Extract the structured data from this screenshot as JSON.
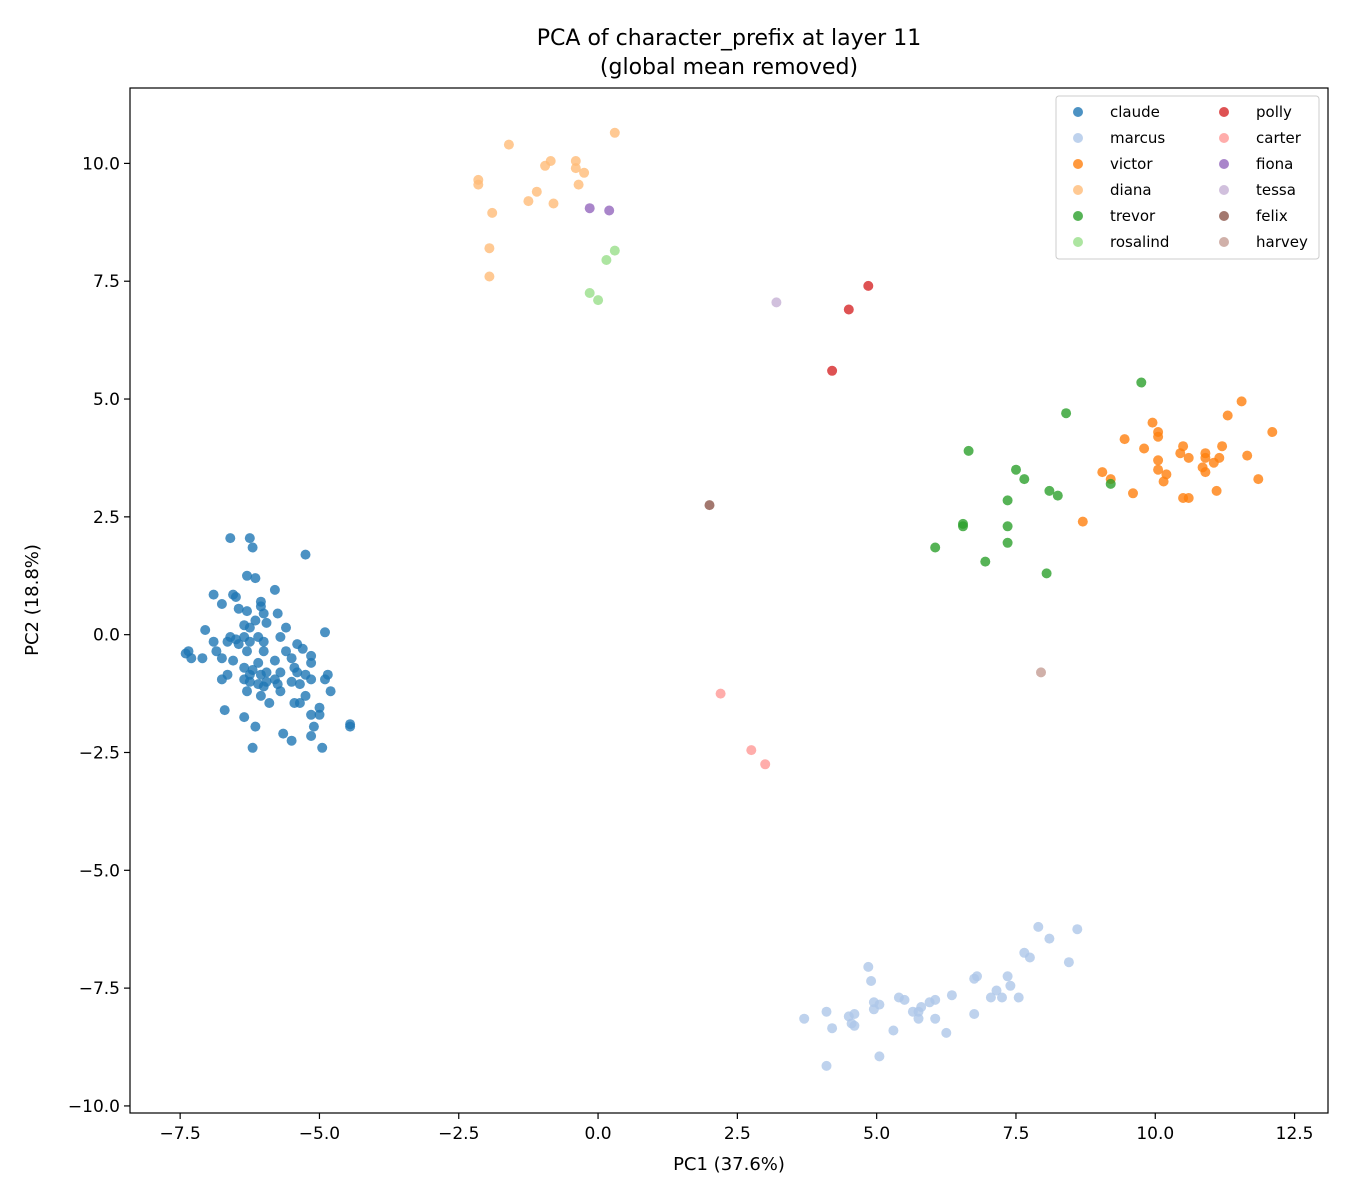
{
  "chart_data": {
    "type": "scatter",
    "title": "PCA of character_prefix at layer 11",
    "subtitle": "(global mean removed)",
    "xlabel": "PC1 (37.6%)",
    "ylabel": "PC2 (18.8%)",
    "xlim": [
      -8.4,
      13.1
    ],
    "ylim": [
      -10.15,
      11.6
    ],
    "xticks": [
      -7.5,
      -5.0,
      -2.5,
      0.0,
      2.5,
      5.0,
      7.5,
      10.0,
      12.5
    ],
    "xtick_labels": [
      "−7.5",
      "−5.0",
      "−2.5",
      "0.0",
      "2.5",
      "5.0",
      "7.5",
      "10.0",
      "12.5"
    ],
    "yticks": [
      -10.0,
      -7.5,
      -5.0,
      -2.5,
      0.0,
      2.5,
      5.0,
      7.5,
      10.0
    ],
    "ytick_labels": [
      "−10.0",
      "−7.5",
      "−5.0",
      "−2.5",
      "0.0",
      "2.5",
      "5.0",
      "7.5",
      "10.0"
    ],
    "grid": false,
    "legend_position": "top-right",
    "legend_columns": 2,
    "series": [
      {
        "name": "claude",
        "color": "#1f77b4",
        "points": [
          [
            -6.6,
            2.05
          ],
          [
            -6.25,
            2.05
          ],
          [
            -6.2,
            1.85
          ],
          [
            -5.25,
            1.7
          ],
          [
            -6.3,
            1.25
          ],
          [
            -6.15,
            1.2
          ],
          [
            -5.8,
            0.95
          ],
          [
            -6.9,
            0.85
          ],
          [
            -6.55,
            0.85
          ],
          [
            -6.5,
            0.8
          ],
          [
            -6.75,
            0.65
          ],
          [
            -6.05,
            0.7
          ],
          [
            -6.05,
            0.6
          ],
          [
            -6.45,
            0.55
          ],
          [
            -6.3,
            0.5
          ],
          [
            -5.75,
            0.45
          ],
          [
            -6.0,
            0.45
          ],
          [
            -6.15,
            0.3
          ],
          [
            -5.95,
            0.25
          ],
          [
            -7.05,
            0.1
          ],
          [
            -6.35,
            0.2
          ],
          [
            -6.25,
            0.15
          ],
          [
            -5.6,
            0.15
          ],
          [
            -5.7,
            -0.05
          ],
          [
            -4.9,
            0.05
          ],
          [
            -6.6,
            -0.05
          ],
          [
            -6.1,
            -0.05
          ],
          [
            -6.5,
            -0.1
          ],
          [
            -6.35,
            -0.05
          ],
          [
            -6.65,
            -0.15
          ],
          [
            -6.45,
            -0.2
          ],
          [
            -6.9,
            -0.15
          ],
          [
            -6.25,
            -0.15
          ],
          [
            -6.0,
            -0.15
          ],
          [
            -6.3,
            -0.35
          ],
          [
            -6.0,
            -0.35
          ],
          [
            -5.4,
            -0.2
          ],
          [
            -5.3,
            -0.3
          ],
          [
            -7.4,
            -0.4
          ],
          [
            -7.35,
            -0.35
          ],
          [
            -7.3,
            -0.5
          ],
          [
            -7.1,
            -0.5
          ],
          [
            -6.85,
            -0.35
          ],
          [
            -6.75,
            -0.5
          ],
          [
            -6.55,
            -0.55
          ],
          [
            -6.35,
            -0.7
          ],
          [
            -6.1,
            -0.6
          ],
          [
            -5.8,
            -0.55
          ],
          [
            -5.6,
            -0.35
          ],
          [
            -5.5,
            -0.5
          ],
          [
            -5.15,
            -0.45
          ],
          [
            -5.15,
            -0.6
          ],
          [
            -6.2,
            -0.75
          ],
          [
            -6.25,
            -0.85
          ],
          [
            -6.05,
            -0.85
          ],
          [
            -5.95,
            -0.8
          ],
          [
            -5.7,
            -0.8
          ],
          [
            -5.45,
            -0.7
          ],
          [
            -5.4,
            -0.8
          ],
          [
            -5.25,
            -0.85
          ],
          [
            -5.15,
            -0.95
          ],
          [
            -4.85,
            -0.85
          ],
          [
            -4.9,
            -0.95
          ],
          [
            -6.65,
            -0.85
          ],
          [
            -6.75,
            -0.95
          ],
          [
            -6.35,
            -0.95
          ],
          [
            -6.25,
            -1.0
          ],
          [
            -6.1,
            -1.05
          ],
          [
            -5.95,
            -1.0
          ],
          [
            -5.8,
            -0.95
          ],
          [
            -5.75,
            -1.05
          ],
          [
            -5.5,
            -1.0
          ],
          [
            -5.35,
            -1.05
          ],
          [
            -6.3,
            -1.2
          ],
          [
            -6.0,
            -1.1
          ],
          [
            -5.7,
            -1.2
          ],
          [
            -4.8,
            -1.2
          ],
          [
            -5.25,
            -1.3
          ],
          [
            -6.05,
            -1.3
          ],
          [
            -5.9,
            -1.45
          ],
          [
            -5.45,
            -1.45
          ],
          [
            -5.35,
            -1.45
          ],
          [
            -5.0,
            -1.55
          ],
          [
            -6.7,
            -1.6
          ],
          [
            -5.15,
            -1.7
          ],
          [
            -5.0,
            -1.7
          ],
          [
            -6.35,
            -1.75
          ],
          [
            -6.15,
            -1.95
          ],
          [
            -5.1,
            -1.95
          ],
          [
            -4.45,
            -1.9
          ],
          [
            -4.45,
            -1.95
          ],
          [
            -5.65,
            -2.1
          ],
          [
            -5.5,
            -2.25
          ],
          [
            -5.15,
            -2.15
          ],
          [
            -6.2,
            -2.4
          ],
          [
            -4.95,
            -2.4
          ]
        ]
      },
      {
        "name": "marcus",
        "color": "#aec7e8",
        "points": [
          [
            7.9,
            -6.2
          ],
          [
            8.6,
            -6.25
          ],
          [
            8.1,
            -6.45
          ],
          [
            7.65,
            -6.75
          ],
          [
            7.75,
            -6.85
          ],
          [
            8.45,
            -6.95
          ],
          [
            4.85,
            -7.05
          ],
          [
            6.8,
            -7.25
          ],
          [
            6.75,
            -7.3
          ],
          [
            7.35,
            -7.25
          ],
          [
            4.9,
            -7.35
          ],
          [
            7.4,
            -7.45
          ],
          [
            7.15,
            -7.55
          ],
          [
            6.35,
            -7.65
          ],
          [
            7.05,
            -7.7
          ],
          [
            7.25,
            -7.7
          ],
          [
            7.55,
            -7.7
          ],
          [
            5.4,
            -7.7
          ],
          [
            5.5,
            -7.75
          ],
          [
            6.05,
            -7.75
          ],
          [
            5.95,
            -7.8
          ],
          [
            4.95,
            -7.8
          ],
          [
            5.05,
            -7.85
          ],
          [
            4.95,
            -7.95
          ],
          [
            5.8,
            -7.9
          ],
          [
            5.65,
            -8.0
          ],
          [
            5.75,
            -8.0
          ],
          [
            4.1,
            -8.0
          ],
          [
            6.75,
            -8.05
          ],
          [
            4.5,
            -8.1
          ],
          [
            4.6,
            -8.05
          ],
          [
            3.7,
            -8.15
          ],
          [
            5.75,
            -8.15
          ],
          [
            6.05,
            -8.15
          ],
          [
            4.55,
            -8.25
          ],
          [
            4.6,
            -8.3
          ],
          [
            4.2,
            -8.35
          ],
          [
            5.3,
            -8.4
          ],
          [
            6.25,
            -8.45
          ],
          [
            5.05,
            -8.95
          ],
          [
            4.1,
            -9.15
          ]
        ]
      },
      {
        "name": "victor",
        "color": "#ff7f0e",
        "points": [
          [
            11.55,
            4.95
          ],
          [
            11.3,
            4.65
          ],
          [
            9.95,
            4.5
          ],
          [
            12.1,
            4.3
          ],
          [
            10.05,
            4.3
          ],
          [
            10.05,
            4.2
          ],
          [
            9.45,
            4.15
          ],
          [
            10.5,
            4.0
          ],
          [
            11.2,
            4.0
          ],
          [
            9.8,
            3.95
          ],
          [
            10.45,
            3.85
          ],
          [
            10.9,
            3.85
          ],
          [
            10.6,
            3.75
          ],
          [
            10.9,
            3.75
          ],
          [
            11.15,
            3.75
          ],
          [
            11.65,
            3.8
          ],
          [
            11.05,
            3.65
          ],
          [
            10.05,
            3.7
          ],
          [
            10.85,
            3.55
          ],
          [
            10.05,
            3.5
          ],
          [
            10.9,
            3.45
          ],
          [
            9.05,
            3.45
          ],
          [
            10.2,
            3.4
          ],
          [
            9.2,
            3.3
          ],
          [
            11.85,
            3.3
          ],
          [
            10.15,
            3.25
          ],
          [
            11.1,
            3.05
          ],
          [
            9.6,
            3.0
          ],
          [
            10.5,
            2.9
          ],
          [
            10.6,
            2.9
          ],
          [
            8.7,
            2.4
          ]
        ]
      },
      {
        "name": "diana",
        "color": "#ffbb78",
        "points": [
          [
            0.3,
            10.65
          ],
          [
            -1.6,
            10.4
          ],
          [
            -0.85,
            10.05
          ],
          [
            -0.4,
            10.05
          ],
          [
            -0.95,
            9.95
          ],
          [
            -0.4,
            9.9
          ],
          [
            -0.25,
            9.8
          ],
          [
            -2.15,
            9.65
          ],
          [
            -2.15,
            9.55
          ],
          [
            -0.35,
            9.55
          ],
          [
            -1.1,
            9.4
          ],
          [
            -1.25,
            9.2
          ],
          [
            -0.8,
            9.15
          ],
          [
            -1.9,
            8.95
          ],
          [
            -1.95,
            8.2
          ],
          [
            -1.95,
            7.6
          ]
        ]
      },
      {
        "name": "trevor",
        "color": "#2ca02c",
        "points": [
          [
            9.75,
            5.35
          ],
          [
            8.4,
            4.7
          ],
          [
            6.65,
            3.9
          ],
          [
            7.5,
            3.5
          ],
          [
            7.65,
            3.3
          ],
          [
            9.2,
            3.2
          ],
          [
            8.1,
            3.05
          ],
          [
            8.25,
            2.95
          ],
          [
            7.35,
            2.85
          ],
          [
            6.55,
            2.35
          ],
          [
            6.55,
            2.3
          ],
          [
            7.35,
            2.3
          ],
          [
            7.35,
            1.95
          ],
          [
            6.05,
            1.85
          ],
          [
            6.95,
            1.55
          ],
          [
            8.05,
            1.3
          ]
        ]
      },
      {
        "name": "rosalind",
        "color": "#98df8a",
        "points": [
          [
            0.3,
            8.15
          ],
          [
            0.15,
            7.95
          ],
          [
            -0.15,
            7.25
          ],
          [
            0.0,
            7.1
          ]
        ]
      },
      {
        "name": "polly",
        "color": "#d62728",
        "points": [
          [
            4.85,
            7.4
          ],
          [
            4.5,
            6.9
          ],
          [
            4.2,
            5.6
          ]
        ]
      },
      {
        "name": "carter",
        "color": "#ff9896",
        "points": [
          [
            2.2,
            -1.25
          ],
          [
            2.75,
            -2.45
          ],
          [
            3.0,
            -2.75
          ]
        ]
      },
      {
        "name": "fiona",
        "color": "#9467bd",
        "points": [
          [
            -0.15,
            9.05
          ],
          [
            0.2,
            9.0
          ]
        ]
      },
      {
        "name": "tessa",
        "color": "#c5b0d5",
        "points": [
          [
            3.2,
            7.05
          ]
        ]
      },
      {
        "name": "felix",
        "color": "#8c564b",
        "points": [
          [
            2.0,
            2.75
          ]
        ]
      },
      {
        "name": "harvey",
        "color": "#c49c94",
        "points": [
          [
            7.95,
            -0.8
          ]
        ]
      }
    ]
  }
}
